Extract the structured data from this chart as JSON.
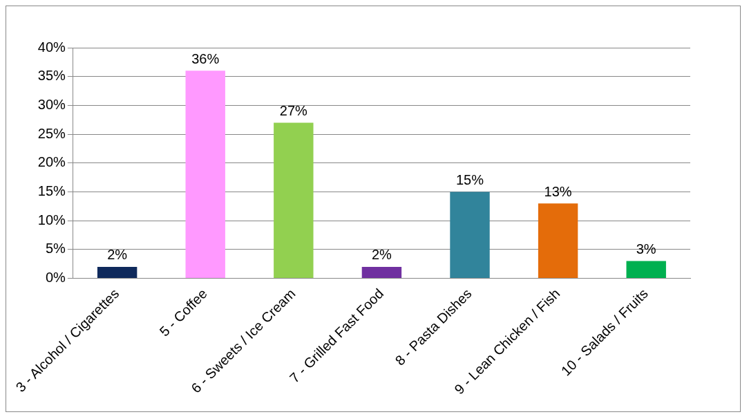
{
  "chart_data": {
    "type": "bar",
    "categories": [
      "3 - Alcohol / Cigarettes",
      "5 - Coffee",
      "6 - Sweets / Ice Cream",
      "7 - Grilled Fast Food",
      "8 - Pasta Dishes",
      "9 - Lean Chicken / Fish",
      "10 - Salads / Fruits"
    ],
    "values": [
      2,
      36,
      27,
      2,
      15,
      13,
      3
    ],
    "colors": [
      "#0f2a5c",
      "#ff99ff",
      "#92d050",
      "#7030a0",
      "#31849b",
      "#e46c0a",
      "#00b050"
    ],
    "value_labels": [
      "2%",
      "36%",
      "27%",
      "2%",
      "15%",
      "13%",
      "3%"
    ],
    "ylim": [
      0,
      40
    ],
    "yticks": [
      {
        "value": 0,
        "label": "0%"
      },
      {
        "value": 5,
        "label": "5%"
      },
      {
        "value": 10,
        "label": "10%"
      },
      {
        "value": 15,
        "label": "15%"
      },
      {
        "value": 20,
        "label": "20%"
      },
      {
        "value": 25,
        "label": "25%"
      },
      {
        "value": 30,
        "label": "30%"
      },
      {
        "value": 35,
        "label": "35%"
      },
      {
        "value": 40,
        "label": "40%"
      }
    ],
    "grid": "y",
    "legend": false
  }
}
